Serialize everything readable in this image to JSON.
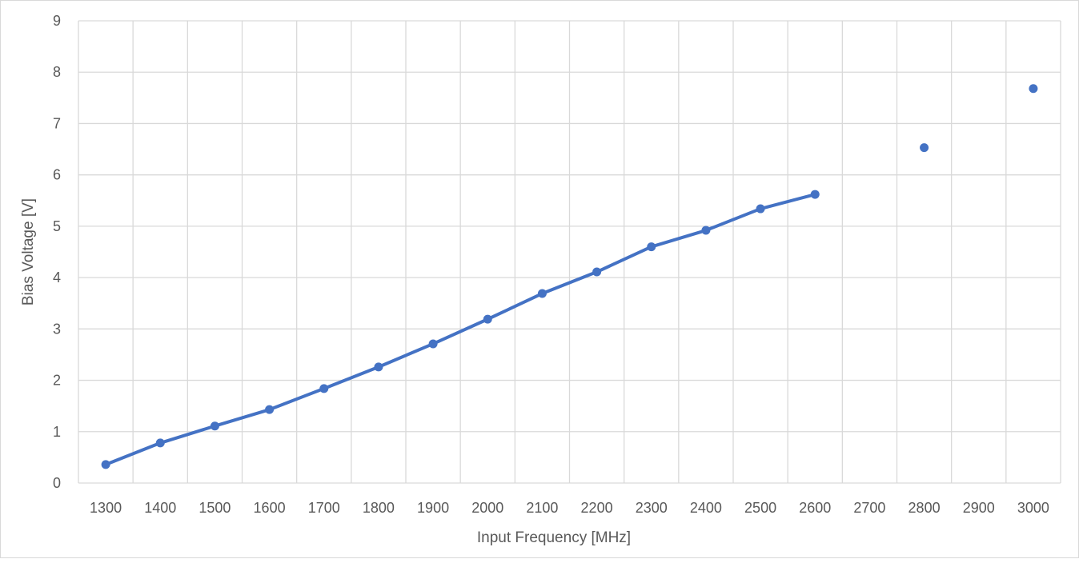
{
  "chart_data": {
    "type": "line",
    "title": "",
    "xlabel": "Input Frequency [MHz]",
    "ylabel": "Bias Voltage [V]",
    "categories": [
      "1300",
      "1400",
      "1500",
      "1600",
      "1700",
      "1800",
      "1900",
      "2000",
      "2100",
      "2200",
      "2300",
      "2400",
      "2500",
      "2600",
      "2700",
      "2800",
      "2900",
      "3000"
    ],
    "series": [
      {
        "name": "Bias Voltage",
        "color": "#4472C4",
        "values": [
          0.36,
          0.78,
          1.11,
          1.43,
          1.84,
          2.26,
          2.71,
          3.19,
          3.69,
          4.11,
          4.6,
          4.92,
          5.34,
          5.62,
          null,
          6.53,
          null,
          7.68
        ]
      }
    ],
    "yticks": [
      "0",
      "1",
      "2",
      "3",
      "4",
      "5",
      "6",
      "7",
      "8",
      "9"
    ],
    "ylim": [
      0,
      9
    ],
    "grid": true,
    "legend": "none"
  },
  "axes": {
    "x_title": "Input Frequency [MHz]",
    "y_title": "Bias Voltage [V]"
  }
}
